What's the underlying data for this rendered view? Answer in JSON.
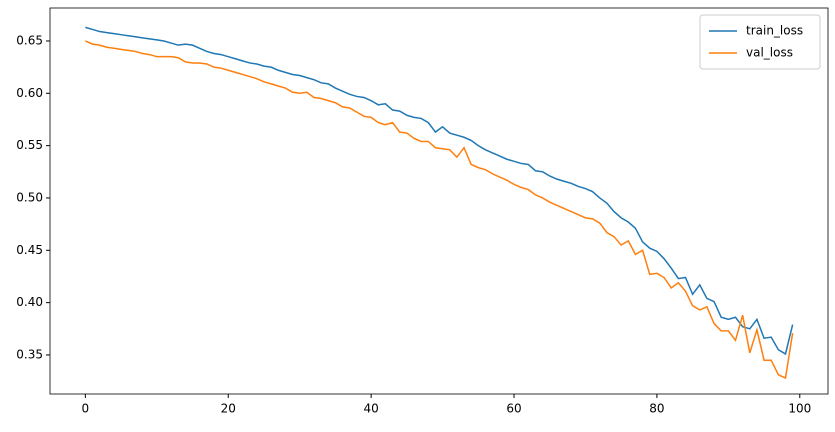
{
  "chart_data": {
    "type": "line",
    "x": [
      0,
      1,
      2,
      3,
      4,
      5,
      6,
      7,
      8,
      9,
      10,
      11,
      12,
      13,
      14,
      15,
      16,
      17,
      18,
      19,
      20,
      21,
      22,
      23,
      24,
      25,
      26,
      27,
      28,
      29,
      30,
      31,
      32,
      33,
      34,
      35,
      36,
      37,
      38,
      39,
      40,
      41,
      42,
      43,
      44,
      45,
      46,
      47,
      48,
      49,
      50,
      51,
      52,
      53,
      54,
      55,
      56,
      57,
      58,
      59,
      60,
      61,
      62,
      63,
      64,
      65,
      66,
      67,
      68,
      69,
      70,
      71,
      72,
      73,
      74,
      75,
      76,
      77,
      78,
      79,
      80,
      81,
      82,
      83,
      84,
      85,
      86,
      87,
      88,
      89,
      90,
      91,
      92,
      93,
      94,
      95,
      96,
      97,
      98,
      99
    ],
    "series": [
      {
        "name": "train_loss",
        "color": "#1f77b4",
        "values": [
          0.663,
          0.661,
          0.659,
          0.658,
          0.657,
          0.656,
          0.655,
          0.654,
          0.653,
          0.652,
          0.651,
          0.65,
          0.648,
          0.646,
          0.647,
          0.646,
          0.643,
          0.64,
          0.638,
          0.637,
          0.635,
          0.633,
          0.631,
          0.629,
          0.628,
          0.626,
          0.625,
          0.622,
          0.62,
          0.618,
          0.617,
          0.615,
          0.613,
          0.61,
          0.609,
          0.605,
          0.602,
          0.599,
          0.597,
          0.596,
          0.593,
          0.589,
          0.59,
          0.584,
          0.583,
          0.579,
          0.577,
          0.576,
          0.572,
          0.563,
          0.568,
          0.562,
          0.56,
          0.558,
          0.555,
          0.55,
          0.546,
          0.543,
          0.54,
          0.537,
          0.535,
          0.533,
          0.532,
          0.526,
          0.525,
          0.521,
          0.518,
          0.516,
          0.514,
          0.511,
          0.509,
          0.506,
          0.5,
          0.495,
          0.487,
          0.481,
          0.477,
          0.471,
          0.458,
          0.452,
          0.449,
          0.442,
          0.433,
          0.423,
          0.424,
          0.408,
          0.417,
          0.404,
          0.401,
          0.386,
          0.384,
          0.386,
          0.377,
          0.375,
          0.384,
          0.366,
          0.367,
          0.355,
          0.351,
          0.379
        ]
      },
      {
        "name": "val_loss",
        "color": "#ff7f0e",
        "values": [
          0.65,
          0.647,
          0.646,
          0.644,
          0.643,
          0.642,
          0.641,
          0.64,
          0.638,
          0.637,
          0.635,
          0.635,
          0.635,
          0.634,
          0.63,
          0.629,
          0.629,
          0.628,
          0.625,
          0.624,
          0.622,
          0.62,
          0.618,
          0.616,
          0.614,
          0.611,
          0.609,
          0.607,
          0.605,
          0.601,
          0.6,
          0.601,
          0.596,
          0.595,
          0.593,
          0.591,
          0.587,
          0.586,
          0.582,
          0.578,
          0.577,
          0.572,
          0.57,
          0.572,
          0.563,
          0.562,
          0.557,
          0.554,
          0.554,
          0.548,
          0.547,
          0.546,
          0.539,
          0.548,
          0.532,
          0.529,
          0.527,
          0.523,
          0.52,
          0.517,
          0.513,
          0.51,
          0.508,
          0.503,
          0.5,
          0.496,
          0.493,
          0.49,
          0.487,
          0.484,
          0.481,
          0.48,
          0.476,
          0.467,
          0.463,
          0.455,
          0.459,
          0.446,
          0.45,
          0.427,
          0.428,
          0.424,
          0.414,
          0.419,
          0.411,
          0.397,
          0.393,
          0.396,
          0.38,
          0.373,
          0.373,
          0.364,
          0.388,
          0.352,
          0.374,
          0.345,
          0.345,
          0.331,
          0.328,
          0.371
        ]
      }
    ],
    "xlim": [
      -4.95,
      103.95
    ],
    "xticks": [
      0,
      20,
      40,
      60,
      80,
      100
    ],
    "ylim": [
      0.3127,
      0.6815
    ],
    "yticks": [
      0.35,
      {
        "value": 0.4,
        "label": "0.40"
      },
      0.45,
      {
        "value": 0.5,
        "label": "0.50"
      },
      0.55,
      {
        "value": 0.6,
        "label": "0.60"
      },
      0.65
    ],
    "legend": "upper right"
  }
}
